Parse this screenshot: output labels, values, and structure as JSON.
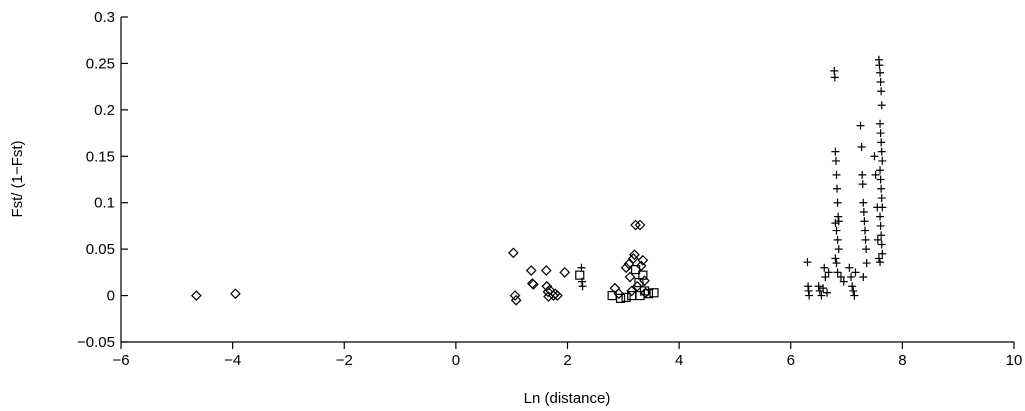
{
  "chart_data": {
    "type": "scatter",
    "title": "",
    "xlabel": "Ln (distance)",
    "ylabel": "Fst/ (1−Fst)",
    "xlim": [
      -6,
      10
    ],
    "ylim": [
      -0.05,
      0.3
    ],
    "xticks": [
      -6,
      -4,
      -2,
      0,
      2,
      4,
      6,
      8,
      10
    ],
    "xtick_labels": [
      "−6",
      "−4",
      "−2",
      "0",
      "2",
      "4",
      "6",
      "8",
      "10"
    ],
    "yticks": [
      -0.05,
      0,
      0.05,
      0.1,
      0.15,
      0.2,
      0.25,
      0.3
    ],
    "ytick_labels": [
      "−0.05",
      "0",
      "0.05",
      "0.1",
      "0.15",
      "0.2",
      "0.25",
      "0.3"
    ],
    "grid": false,
    "legend": "none",
    "series": [
      {
        "marker": "diamond",
        "points": [
          [
            -4.65,
            0.0
          ],
          [
            -3.95,
            0.002
          ],
          [
            1.03,
            0.046
          ],
          [
            1.06,
            0.0
          ],
          [
            1.08,
            -0.005
          ],
          [
            1.35,
            0.027
          ],
          [
            1.37,
            0.013
          ],
          [
            1.39,
            0.012
          ],
          [
            1.62,
            0.027
          ],
          [
            1.63,
            0.01
          ],
          [
            1.65,
            0.004
          ],
          [
            1.66,
            -0.001
          ],
          [
            1.68,
            0.006
          ],
          [
            1.75,
            0.0
          ],
          [
            1.78,
            0.002
          ],
          [
            1.82,
            0.0
          ],
          [
            1.95,
            0.025
          ],
          [
            2.85,
            0.008
          ],
          [
            2.92,
            0.002
          ],
          [
            3.05,
            0.03
          ],
          [
            3.1,
            0.034
          ],
          [
            3.12,
            0.02
          ],
          [
            3.15,
            0.005
          ],
          [
            3.18,
            0.04
          ],
          [
            3.2,
            0.044
          ],
          [
            3.22,
            0.076
          ],
          [
            3.25,
            0.01
          ],
          [
            3.3,
            0.076
          ],
          [
            3.32,
            0.032
          ],
          [
            3.35,
            0.038
          ],
          [
            3.38,
            0.016
          ],
          [
            3.4,
            0.003
          ]
        ]
      },
      {
        "marker": "square",
        "points": [
          [
            2.22,
            0.022
          ],
          [
            2.8,
            0.0
          ],
          [
            2.95,
            -0.003
          ],
          [
            3.05,
            -0.002
          ],
          [
            3.15,
            0.0
          ],
          [
            3.22,
            0.028
          ],
          [
            3.28,
            0.014
          ],
          [
            3.3,
            0.0
          ],
          [
            3.35,
            0.022
          ],
          [
            3.38,
            0.005
          ],
          [
            3.45,
            0.002
          ],
          [
            3.55,
            0.003
          ]
        ]
      },
      {
        "marker": "plus",
        "points": [
          [
            2.25,
            0.03
          ],
          [
            2.26,
            0.015
          ],
          [
            2.27,
            0.01
          ],
          [
            6.3,
            0.036
          ],
          [
            6.31,
            0.01
          ],
          [
            6.32,
            0.005
          ],
          [
            6.33,
            0.0
          ],
          [
            6.5,
            0.01
          ],
          [
            6.52,
            0.005
          ],
          [
            6.55,
            0.0
          ],
          [
            6.58,
            0.008
          ],
          [
            6.6,
            0.03
          ],
          [
            6.62,
            0.02
          ],
          [
            6.65,
            0.003
          ],
          [
            6.68,
            0.025
          ],
          [
            6.78,
            0.242
          ],
          [
            6.79,
            0.235
          ],
          [
            6.8,
            0.155
          ],
          [
            6.81,
            0.145
          ],
          [
            6.82,
            0.13
          ],
          [
            6.83,
            0.115
          ],
          [
            6.84,
            0.1
          ],
          [
            6.85,
            0.085
          ],
          [
            6.86,
            0.08
          ],
          [
            6.8,
            0.078
          ],
          [
            6.82,
            0.07
          ],
          [
            6.84,
            0.06
          ],
          [
            6.86,
            0.05
          ],
          [
            6.8,
            0.04
          ],
          [
            6.82,
            0.035
          ],
          [
            6.84,
            0.025
          ],
          [
            6.9,
            0.02
          ],
          [
            6.95,
            0.015
          ],
          [
            7.05,
            0.03
          ],
          [
            7.08,
            0.02
          ],
          [
            7.1,
            0.01
          ],
          [
            7.12,
            0.005
          ],
          [
            7.14,
            0.0
          ],
          [
            7.16,
            0.025
          ],
          [
            7.25,
            0.183
          ],
          [
            7.27,
            0.16
          ],
          [
            7.28,
            0.13
          ],
          [
            7.29,
            0.12
          ],
          [
            7.3,
            0.1
          ],
          [
            7.31,
            0.09
          ],
          [
            7.32,
            0.08
          ],
          [
            7.33,
            0.07
          ],
          [
            7.34,
            0.06
          ],
          [
            7.35,
            0.05
          ],
          [
            7.36,
            0.035
          ],
          [
            7.3,
            0.02
          ],
          [
            7.5,
            0.15
          ],
          [
            7.52,
            0.13
          ],
          [
            7.55,
            0.095
          ],
          [
            7.56,
            0.06
          ],
          [
            7.58,
            0.04
          ],
          [
            7.58,
            0.254
          ],
          [
            7.59,
            0.248
          ],
          [
            7.6,
            0.24
          ],
          [
            7.61,
            0.23
          ],
          [
            7.62,
            0.22
          ],
          [
            7.63,
            0.205
          ],
          [
            7.6,
            0.185
          ],
          [
            7.61,
            0.175
          ],
          [
            7.62,
            0.165
          ],
          [
            7.63,
            0.155
          ],
          [
            7.64,
            0.145
          ],
          [
            7.6,
            0.135
          ],
          [
            7.61,
            0.125
          ],
          [
            7.62,
            0.115
          ],
          [
            7.63,
            0.105
          ],
          [
            7.64,
            0.095
          ],
          [
            7.6,
            0.085
          ],
          [
            7.61,
            0.075
          ],
          [
            7.62,
            0.065
          ],
          [
            7.63,
            0.055
          ],
          [
            7.64,
            0.045
          ],
          [
            7.6,
            0.036
          ]
        ]
      }
    ]
  }
}
